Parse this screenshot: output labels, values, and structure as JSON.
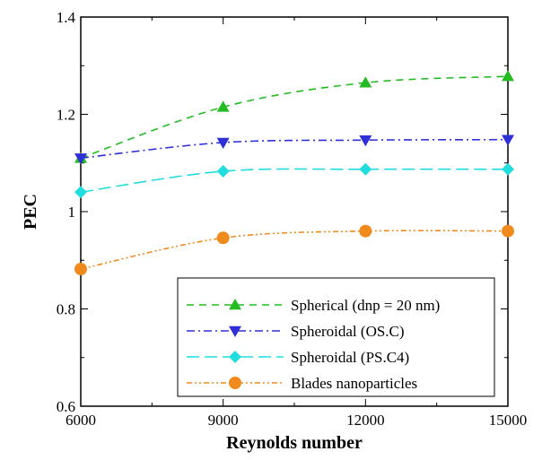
{
  "chart_data": {
    "type": "line",
    "title": "",
    "xlabel": "Reynolds number",
    "ylabel": "PEC",
    "xlim": [
      6000,
      15000
    ],
    "ylim": [
      0.6,
      1.4
    ],
    "xticks": [
      6000,
      9000,
      12000,
      15000
    ],
    "xtick_labels": [
      "6000",
      "9000",
      "12000",
      "15000"
    ],
    "yticks": [
      0.6,
      0.8,
      1.0,
      1.2,
      1.4
    ],
    "ytick_labels": [
      "0.6",
      "0.8",
      "1",
      "1.2",
      "1.4"
    ],
    "grid": false,
    "legend_position": "bottom-right",
    "x": [
      6000,
      9000,
      12000,
      15000
    ],
    "series": [
      {
        "name": "Spherical (dnp = 20 nm)",
        "values": [
          1.11,
          1.215,
          1.265,
          1.278
        ],
        "color": "#22bb22",
        "marker": "triangle-up",
        "dash": "8,6"
      },
      {
        "name": "Spheroidal (OS.C)",
        "values": [
          1.11,
          1.142,
          1.147,
          1.148
        ],
        "color": "#2f2fd8",
        "marker": "triangle-down",
        "dash": "9,4,2,4"
      },
      {
        "name": "Spheroidal (PS.C4)",
        "values": [
          1.04,
          1.083,
          1.087,
          1.087
        ],
        "color": "#22dddd",
        "marker": "diamond",
        "dash": "14,6"
      },
      {
        "name": "Blades nanoparticles",
        "values": [
          0.882,
          0.946,
          0.96,
          0.96
        ],
        "color": "#f08a1c",
        "marker": "circle",
        "dash": "6,3,2,3,2,3"
      }
    ]
  }
}
